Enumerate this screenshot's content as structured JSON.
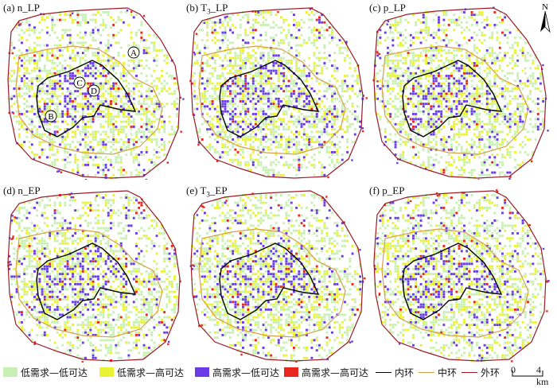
{
  "panels": [
    {
      "id": "a",
      "prefix": "(a) ",
      "main": "n",
      "sub": "",
      "suffix": "_LP",
      "seed": 11
    },
    {
      "id": "b",
      "prefix": "(b) ",
      "main": "T",
      "sub": "3",
      "suffix": "_LP",
      "seed": 23
    },
    {
      "id": "c",
      "prefix": "(c) ",
      "main": "p",
      "sub": "",
      "suffix": "_LP",
      "seed": 37
    },
    {
      "id": "d",
      "prefix": "(d) ",
      "main": "n",
      "sub": "",
      "suffix": "_EP",
      "seed": 41
    },
    {
      "id": "e",
      "prefix": "(e) ",
      "main": "T",
      "sub": "3",
      "suffix": "_EP",
      "seed": 53
    },
    {
      "id": "f",
      "prefix": "(f) ",
      "main": "p",
      "sub": "",
      "suffix": "_EP",
      "seed": 67
    }
  ],
  "zone_markers": [
    "A",
    "B",
    "C",
    "D"
  ],
  "legend": {
    "classes": [
      {
        "label": "低需求—低可达",
        "color": "#c8f0b4"
      },
      {
        "label": "低需求—高可达",
        "color": "#eaf234"
      },
      {
        "label": "高需求—低可达",
        "color": "#6a3ce6"
      },
      {
        "label": "高需求—高可达",
        "color": "#e8281e"
      }
    ],
    "rings": [
      {
        "label": "内环",
        "color": "#000000"
      },
      {
        "label": "中环",
        "color": "#d9a04a"
      },
      {
        "label": "外环",
        "color": "#9b1b2a"
      }
    ]
  },
  "scale": {
    "zero": "0",
    "end": "4 km"
  },
  "north": {
    "label": "N"
  }
}
